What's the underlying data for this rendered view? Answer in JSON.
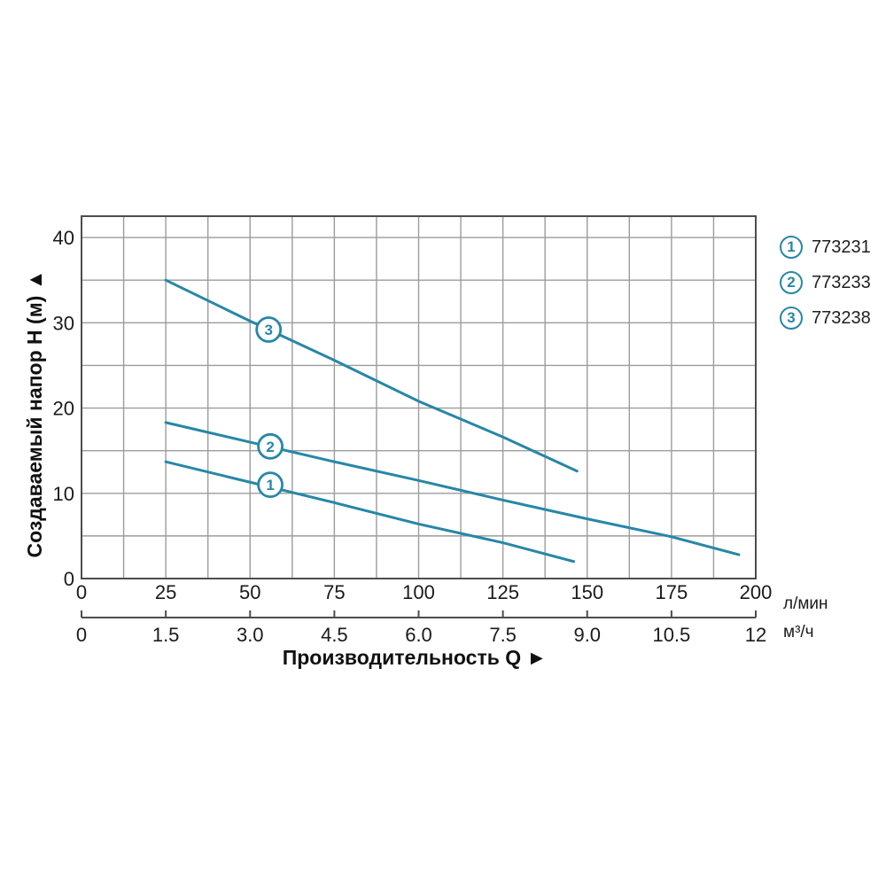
{
  "chart_data": {
    "type": "line",
    "title": "",
    "xlabel": "Производительность Q ►",
    "ylabel": "Создаваемый напор H (м) ▲",
    "grid": true,
    "legend_position": "right-top-outside",
    "x_axis_primary": {
      "unit": "л/мин",
      "min": 0,
      "max": 200,
      "tick_step": 25,
      "grid_step": 12.5,
      "ticks": [
        "0",
        "25",
        "50",
        "75",
        "100",
        "125",
        "150",
        "175",
        "200"
      ]
    },
    "x_axis_secondary": {
      "unit": "м³/ч",
      "min": 0,
      "max": 12,
      "tick_step": 1.5,
      "ticks": [
        "0",
        "1.5",
        "3.0",
        "4.5",
        "6.0",
        "7.5",
        "9.0",
        "10.5",
        "12"
      ]
    },
    "y_axis": {
      "unit": "м",
      "min": 0,
      "max": 40,
      "scale_max": 42.5,
      "tick_step": 10,
      "grid_step": 5,
      "ticks": [
        "0",
        "10",
        "20",
        "30",
        "40"
      ]
    },
    "series": [
      {
        "marker": "1",
        "article": "773231",
        "points": [
          [
            25,
            13.7
          ],
          [
            50,
            11.3
          ],
          [
            75,
            8.9
          ],
          [
            100,
            6.4
          ],
          [
            125,
            4.2
          ],
          [
            146,
            2.0
          ]
        ],
        "label_at": [
          56,
          11.0
        ]
      },
      {
        "marker": "2",
        "article": "773233",
        "points": [
          [
            25,
            18.3
          ],
          [
            50,
            16.0
          ],
          [
            75,
            13.7
          ],
          [
            100,
            11.5
          ],
          [
            125,
            9.2
          ],
          [
            150,
            7.0
          ],
          [
            175,
            4.9
          ],
          [
            195,
            2.8
          ]
        ],
        "label_at": [
          56,
          15.5
        ]
      },
      {
        "marker": "3",
        "article": "773238",
        "points": [
          [
            25,
            35.0
          ],
          [
            50,
            30.2
          ],
          [
            75,
            25.6
          ],
          [
            100,
            20.8
          ],
          [
            125,
            16.6
          ],
          [
            147,
            12.6
          ]
        ],
        "label_at": [
          55.5,
          29.2
        ]
      }
    ],
    "colors": {
      "curve": "#2787a6",
      "grid": "#9c9c9c",
      "border": "#4d4d4d",
      "text": "#1a1a1a",
      "background": "#ffffff"
    }
  }
}
